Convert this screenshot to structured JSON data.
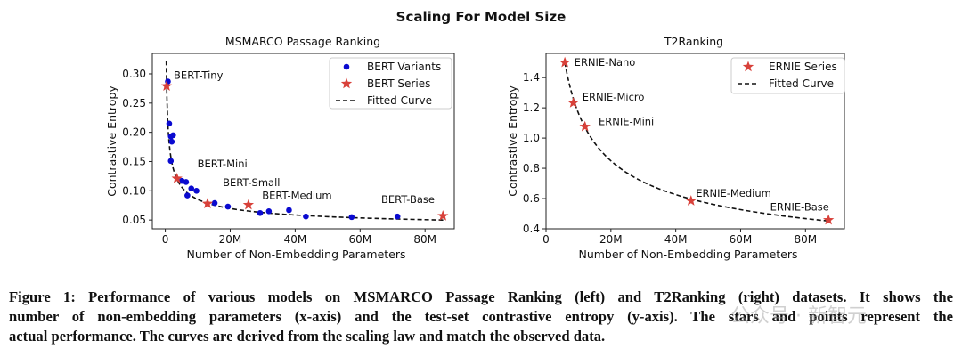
{
  "figure_title": "Scaling For Model Size",
  "chart_data": [
    {
      "type": "scatter",
      "title": "MSMARCO Passage Ranking",
      "xlabel": "Number of Non-Embedding Parameters",
      "ylabel": "Contrastive Entropy",
      "xlim": [
        -4,
        89
      ],
      "ylim": [
        0.035,
        0.335
      ],
      "xticks": [
        {
          "v": 0,
          "label": "0"
        },
        {
          "v": 20,
          "label": "20M"
        },
        {
          "v": 40,
          "label": "40M"
        },
        {
          "v": 60,
          "label": "60M"
        },
        {
          "v": 80,
          "label": "80M"
        }
      ],
      "yticks": [
        {
          "v": 0.05,
          "label": "0.05"
        },
        {
          "v": 0.1,
          "label": "0.10"
        },
        {
          "v": 0.15,
          "label": "0.15"
        },
        {
          "v": 0.2,
          "label": "0.20"
        },
        {
          "v": 0.25,
          "label": "0.25"
        },
        {
          "v": 0.3,
          "label": "0.30"
        }
      ],
      "legend": {
        "placement": "top-right",
        "entries": [
          "BERT Variants",
          "BERT Series",
          "Fitted Curve"
        ]
      },
      "series": [
        {
          "name": "BERT Variants",
          "marker": "circle",
          "color": "#0a0ad0",
          "points": [
            [
              0.8,
              0.287
            ],
            [
              1.2,
              0.215
            ],
            [
              2.4,
              0.195
            ],
            [
              1.7,
              0.193
            ],
            [
              2.0,
              0.184
            ],
            [
              1.7,
              0.151
            ],
            [
              5.1,
              0.117
            ],
            [
              6.4,
              0.115
            ],
            [
              8.0,
              0.104
            ],
            [
              9.6,
              0.1
            ],
            [
              6.8,
              0.092
            ],
            [
              15.2,
              0.079
            ],
            [
              19.3,
              0.073
            ],
            [
              29.2,
              0.062
            ],
            [
              31.9,
              0.065
            ],
            [
              38.1,
              0.067
            ],
            [
              43.3,
              0.056
            ],
            [
              57.4,
              0.055
            ],
            [
              71.5,
              0.056
            ]
          ]
        },
        {
          "name": "BERT Series",
          "marker": "star",
          "color": "#d8413a",
          "points": [
            [
              0.4,
              0.279,
              "BERT-Tiny",
              2.6,
              0.298
            ],
            [
              3.6,
              0.121,
              "BERT-Mini",
              9.9,
              0.146
            ],
            [
              13.0,
              0.078,
              "BERT-Small",
              17.7,
              0.114
            ],
            [
              25.6,
              0.076,
              "BERT-Medium",
              29.8,
              0.092
            ],
            [
              85.5,
              0.057,
              "BERT-Base",
              66.5,
              0.085
            ]
          ]
        }
      ],
      "fitted_curve": {
        "name": "Fitted Curve",
        "form": "a*x^-b + c",
        "a": 0.165,
        "b": 0.475,
        "c": 0.03,
        "x_range": [
          0.3,
          86
        ]
      }
    },
    {
      "type": "scatter",
      "title": "T2Ranking",
      "xlabel": "Number of Non-Embedding Parameters",
      "ylabel": "Contrastive Entropy",
      "xlim": [
        0,
        92
      ],
      "ylim": [
        0.4,
        1.56
      ],
      "xticks": [
        {
          "v": 0,
          "label": "0"
        },
        {
          "v": 20,
          "label": "20M"
        },
        {
          "v": 40,
          "label": "40M"
        },
        {
          "v": 60,
          "label": "60M"
        },
        {
          "v": 80,
          "label": "80M"
        }
      ],
      "yticks": [
        {
          "v": 0.4,
          "label": "0.4"
        },
        {
          "v": 0.6,
          "label": "0.6"
        },
        {
          "v": 0.8,
          "label": "0.8"
        },
        {
          "v": 1.0,
          "label": "1.0"
        },
        {
          "v": 1.2,
          "label": "1.2"
        },
        {
          "v": 1.4,
          "label": "1.4"
        }
      ],
      "legend": {
        "placement": "top-right",
        "entries": [
          "ERNIE Series",
          "Fitted Curve"
        ]
      },
      "series": [
        {
          "name": "ERNIE Series",
          "marker": "star",
          "color": "#d8413a",
          "points": [
            [
              5.8,
              1.5,
              "ERNIE-Nano",
              8.7,
              1.5
            ],
            [
              8.4,
              1.233,
              "ERNIE-Micro",
              11.2,
              1.272
            ],
            [
              12.0,
              1.076,
              "ERNIE-Mini",
              16.2,
              1.11
            ],
            [
              44.7,
              0.585,
              "ERNIE-Medium",
              46.2,
              0.637
            ],
            [
              87.1,
              0.458,
              "ERNIE-Base",
              69.1,
              0.544
            ]
          ]
        }
      ],
      "fitted_curve": {
        "name": "Fitted Curve",
        "form": "a*x^-b + c",
        "a": 3.39,
        "b": 0.495,
        "c": 0.08,
        "x_range": [
          5.8,
          87.1
        ]
      }
    }
  ],
  "caption": {
    "lines": [
      "Figure 1: Performance of various models on MSMARCO Passage Ranking (left) and T2Ranking (right) datasets. It shows the",
      "number of non-embedding parameters (x-axis) and the test-set contrastive entropy (y-axis). The stars and points represent the",
      "actual performance. The curves are derived from the scaling law and match the observed data."
    ]
  },
  "watermark": "公众号 · 新智元"
}
